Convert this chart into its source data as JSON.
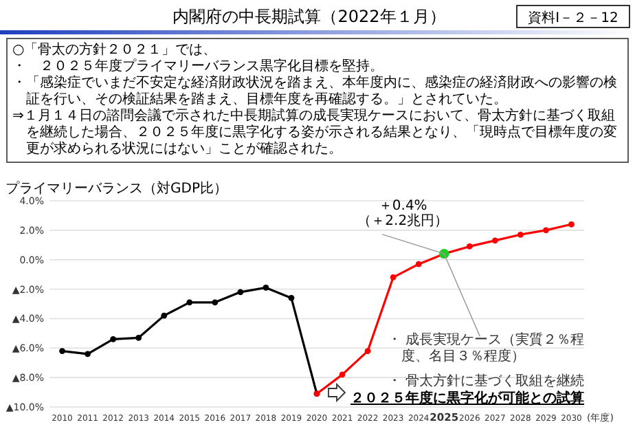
{
  "chart_data": {
    "type": "line",
    "title": "内閣府の中長期試算（2022年１月）",
    "subtitle": "資料Ⅰ－２－12",
    "ylabel": "プライマリーバランス（対GDP比）",
    "xlabel": "(年度)",
    "categories": [
      "2010",
      "2011",
      "2012",
      "2013",
      "2014",
      "2015",
      "2016",
      "2017",
      "2018",
      "2019",
      "2020",
      "2021",
      "2022",
      "2023",
      "2024",
      "2025",
      "2026",
      "2027",
      "2028",
      "2029",
      "2030"
    ],
    "series": [
      {
        "color": "#000000",
        "values": [
          -6.2,
          -6.4,
          -5.4,
          -5.3,
          -3.8,
          -2.9,
          -2.9,
          -2.2,
          -1.9,
          -2.6,
          -9.1,
          null,
          null,
          null,
          null,
          null,
          null,
          null,
          null,
          null,
          null
        ]
      },
      {
        "color": "#ff0000",
        "values": [
          null,
          null,
          null,
          null,
          null,
          null,
          null,
          null,
          null,
          null,
          -9.1,
          -7.8,
          -6.2,
          -1.2,
          -0.3,
          0.4,
          0.9,
          1.3,
          1.7,
          2.0,
          2.4
        ]
      },
      {
        "type": "scatter",
        "color": "#22cc22",
        "values": [
          null,
          null,
          null,
          null,
          null,
          null,
          null,
          null,
          null,
          null,
          null,
          null,
          null,
          null,
          null,
          0.4,
          null,
          null,
          null,
          null,
          null
        ]
      }
    ],
    "ylim": [
      -10,
      4
    ],
    "yticks": [
      {
        "value": 4,
        "label": "4.0%"
      },
      {
        "value": 2,
        "label": "2.0%"
      },
      {
        "value": 0,
        "label": "0.0%"
      },
      {
        "value": -2,
        "label": "▲2.0%"
      },
      {
        "value": -4,
        "label": "▲4.0%"
      },
      {
        "value": -6,
        "label": "▲6.0%"
      },
      {
        "value": -8,
        "label": "▲8.0%"
      },
      {
        "value": -10,
        "label": "▲10.0%"
      }
    ],
    "grid": "y",
    "marker": "circle",
    "line_style": "solid",
    "annotations": [
      "○「骨太の方針２０２１」では、",
      "・　２０２５年度プライマリーバランス黒字化目標を堅持。",
      "・「感染症でいまだ不安定な経済財政状況を踏まえ、本年度内に、感染症の経済財政への影響の検証を行い、その検証結果を踏まえ、目標年度を再確認する。」とされていた。",
      "⇒１月１４日の諮問会議で示された中長期試算の成長実現ケースにおいて、骨太方針に基づく取組を継続した場合、２０２５年度に黒字化する姿が示される結果となり、「現時点で目標年度の変更が求められる状況にはない」ことが確認された。",
      {
        "text": "＋0.4%\n（＋2.2兆円）",
        "x": "2025",
        "y": 0.4
      },
      "・ 成長実現ケース（実質２％程度、名目３％程度）",
      "・ 骨太方針に基づく取組を継続",
      "２０２５年度に黒字化が可能との試算"
    ]
  }
}
